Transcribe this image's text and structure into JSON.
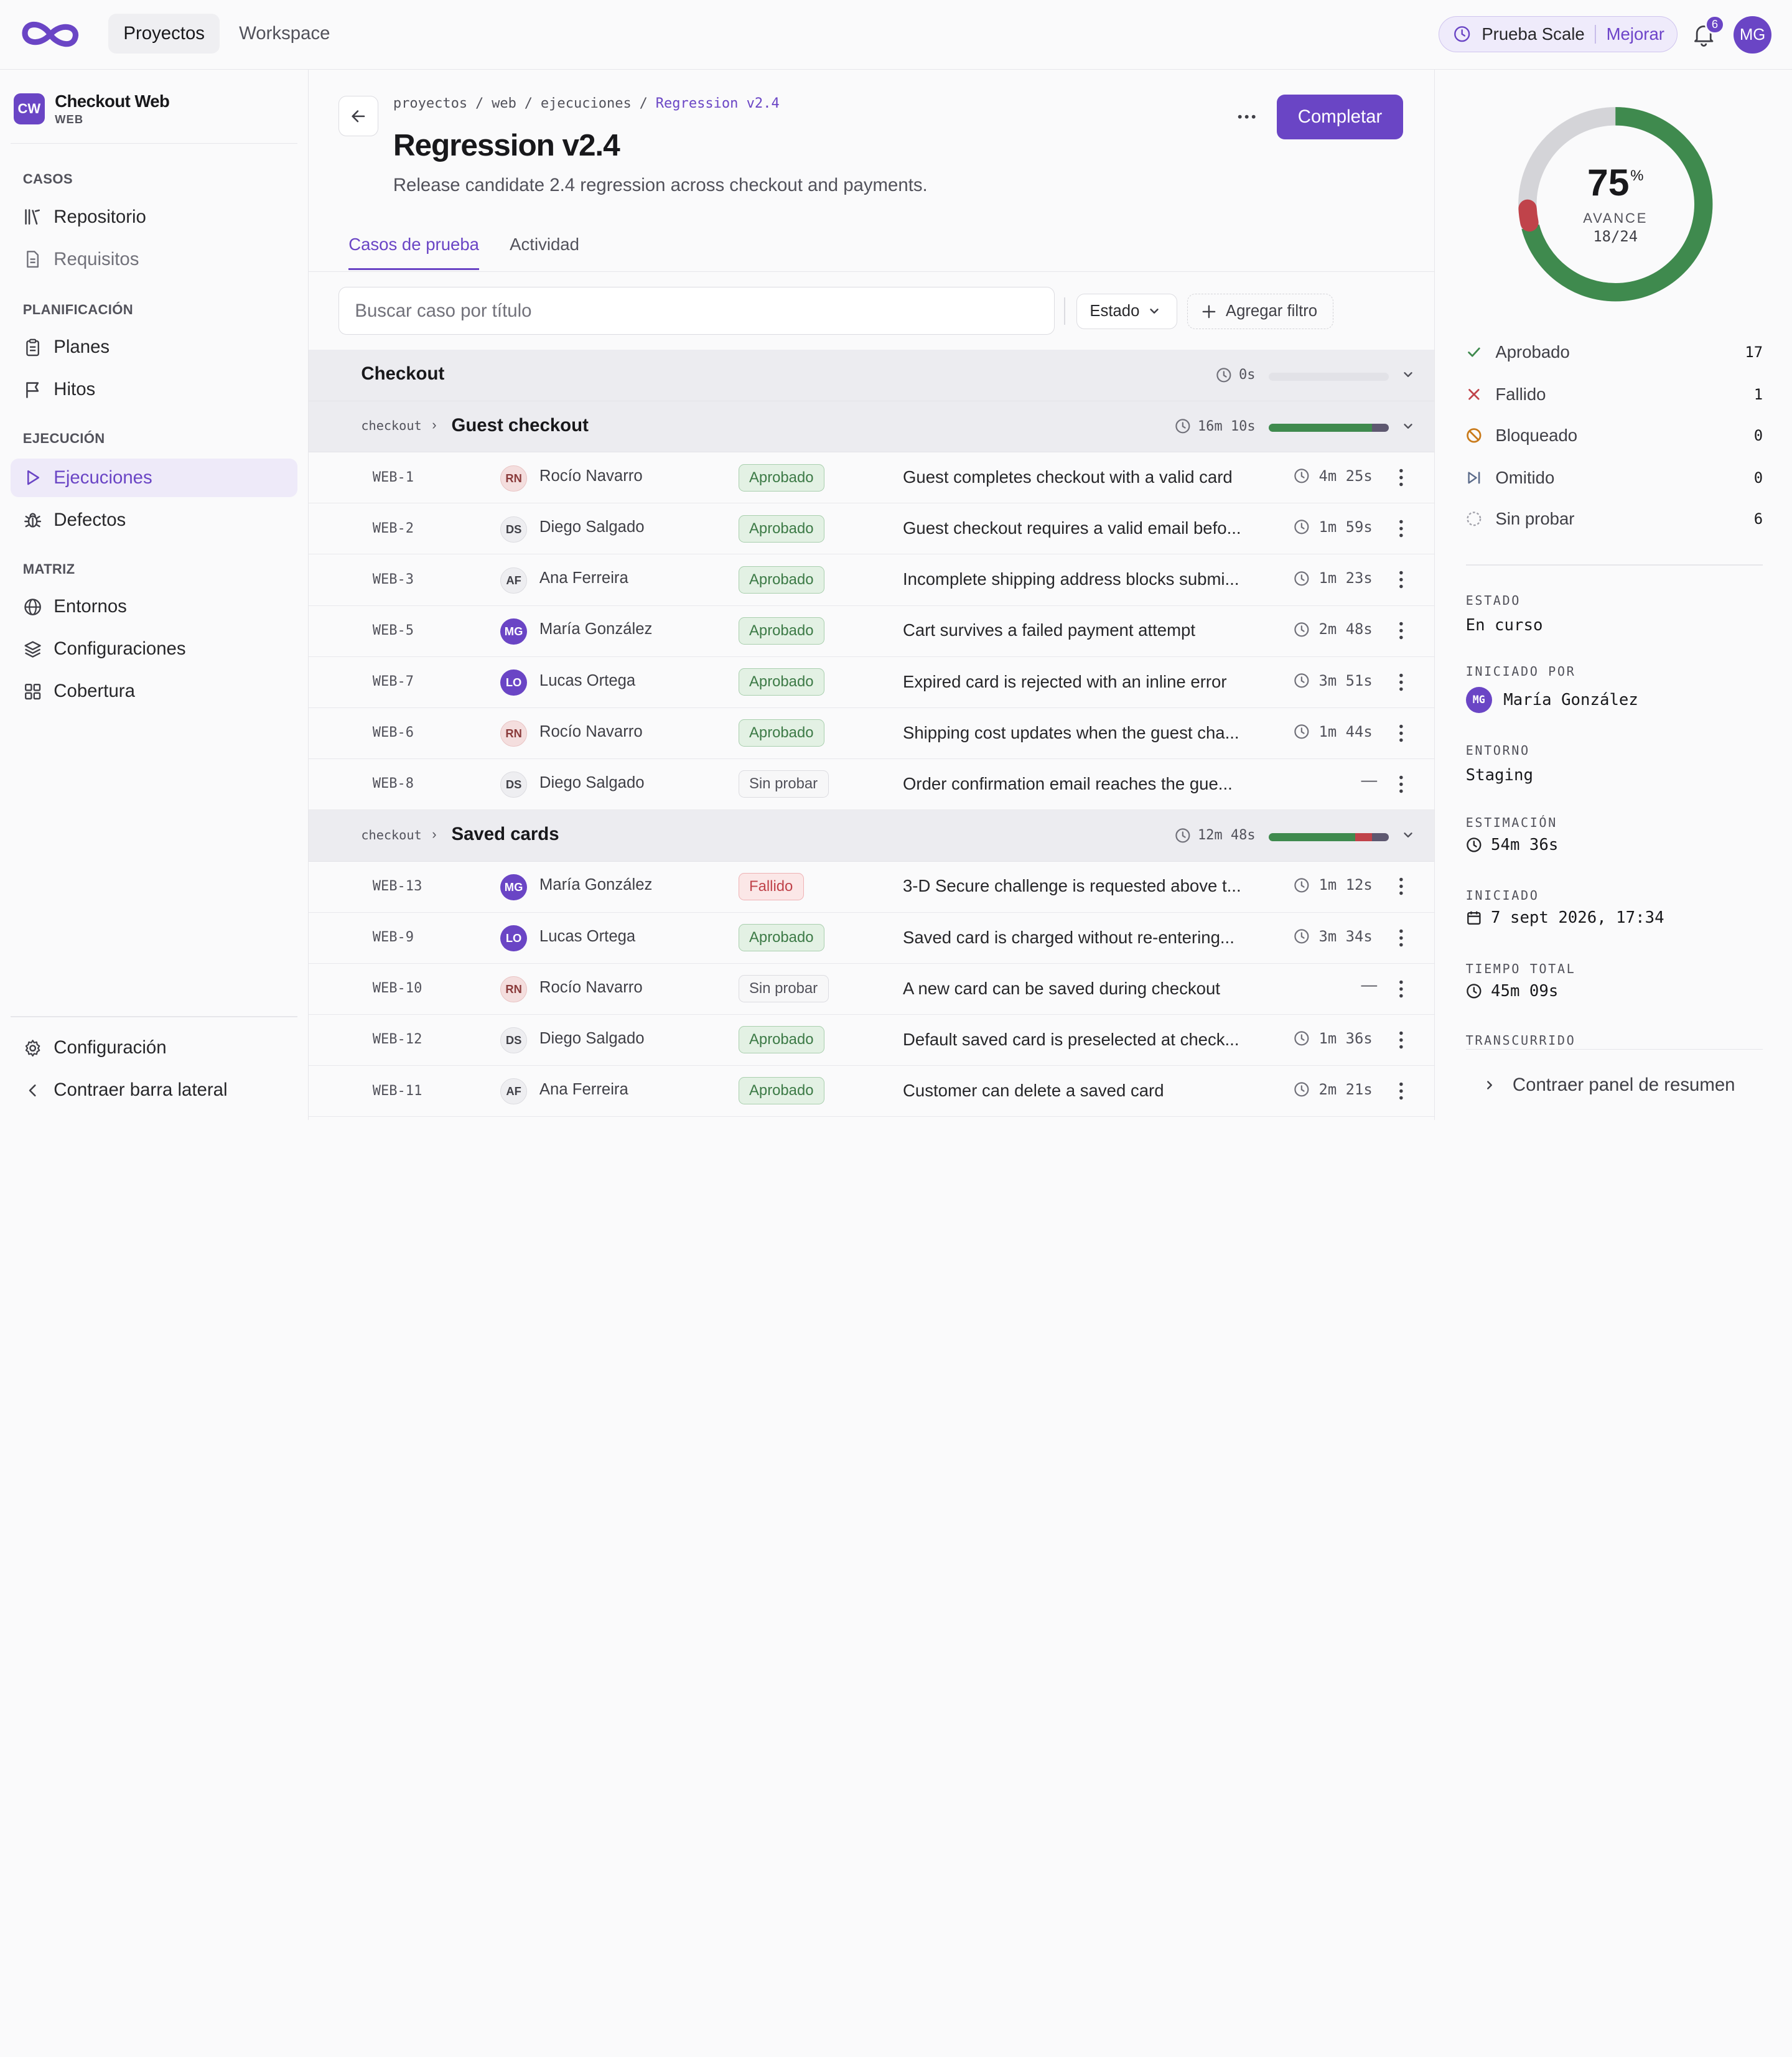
{
  "topbar": {
    "nav": [
      "Proyectos",
      "Workspace"
    ],
    "trial_plan": "Prueba Scale",
    "trial_upgrade": "Mejorar",
    "notification_count": "6",
    "user_initials": "MG"
  },
  "sidebar": {
    "project_badge": "CW",
    "project_name": "Checkout Web",
    "project_key": "WEB",
    "sections": {
      "casos": "CASOS",
      "planificacion": "PLANIFICACIÓN",
      "ejecucion": "EJECUCIÓN",
      "matriz": "MATRIZ"
    },
    "items": {
      "repositorio": "Repositorio",
      "requisitos": "Requisitos",
      "planes": "Planes",
      "hitos": "Hitos",
      "ejecuciones": "Ejecuciones",
      "defectos": "Defectos",
      "entornos": "Entornos",
      "configuraciones": "Configuraciones",
      "cobertura": "Cobertura"
    },
    "settings": "Configuración",
    "collapse": "Contraer barra lateral"
  },
  "main": {
    "breadcrumbs": [
      "proyectos",
      "/",
      "web",
      "/",
      "ejecuciones",
      "/",
      "Regression v2.4"
    ],
    "title": "Regression v2.4",
    "description": "Release candidate 2.4 regression across checkout and payments.",
    "complete_button": "Completar",
    "tabs": [
      "Casos de prueba",
      "Actividad"
    ],
    "search_placeholder": "Buscar caso por título",
    "estado_filter": "Estado",
    "add_filter": "Agregar filtro"
  },
  "groups": {
    "checkout": {
      "title": "Checkout",
      "time": "0s"
    },
    "guest": {
      "path": "checkout",
      "title": "Guest checkout",
      "time": "16m 10s"
    },
    "saved": {
      "path": "checkout",
      "title": "Saved cards",
      "time": "12m 48s"
    }
  },
  "cases_guest": [
    {
      "id": "WEB-1",
      "initials": "RN",
      "assignee": "Rocío Navarro",
      "status": "Aprobado",
      "title": "Guest completes checkout with a valid card",
      "time": "4m 25s"
    },
    {
      "id": "WEB-2",
      "initials": "DS",
      "assignee": "Diego Salgado",
      "status": "Aprobado",
      "title": "Guest checkout requires a valid email befo...",
      "time": "1m 59s"
    },
    {
      "id": "WEB-3",
      "initials": "AF",
      "assignee": "Ana Ferreira",
      "status": "Aprobado",
      "title": "Incomplete shipping address blocks submi...",
      "time": "1m 23s"
    },
    {
      "id": "WEB-5",
      "initials": "MG",
      "assignee": "María González",
      "status": "Aprobado",
      "title": "Cart survives a failed payment attempt",
      "time": "2m 48s"
    },
    {
      "id": "WEB-7",
      "initials": "LO",
      "assignee": "Lucas Ortega",
      "status": "Aprobado",
      "title": "Expired card is rejected with an inline error",
      "time": "3m 51s"
    },
    {
      "id": "WEB-6",
      "initials": "RN",
      "assignee": "Rocío Navarro",
      "status": "Aprobado",
      "title": "Shipping cost updates when the guest cha...",
      "time": "1m 44s"
    },
    {
      "id": "WEB-8",
      "initials": "DS",
      "assignee": "Diego Salgado",
      "status": "Sin probar",
      "title": "Order confirmation email reaches the gue...",
      "time": "—"
    }
  ],
  "cases_saved": [
    {
      "id": "WEB-13",
      "initials": "MG",
      "assignee": "María González",
      "status": "Fallido",
      "title": "3-D Secure challenge is requested above t...",
      "time": "1m 12s"
    },
    {
      "id": "WEB-9",
      "initials": "LO",
      "assignee": "Lucas Ortega",
      "status": "Aprobado",
      "title": "Saved card is charged without re-entering...",
      "time": "3m 34s"
    },
    {
      "id": "WEB-10",
      "initials": "RN",
      "assignee": "Rocío Navarro",
      "status": "Sin probar",
      "title": "A new card can be saved during checkout",
      "time": "—"
    },
    {
      "id": "WEB-12",
      "initials": "DS",
      "assignee": "Diego Salgado",
      "status": "Aprobado",
      "title": "Default saved card is preselected at check...",
      "time": "1m 36s"
    },
    {
      "id": "WEB-11",
      "initials": "AF",
      "assignee": "Ana Ferreira",
      "status": "Aprobado",
      "title": "Customer can delete a saved card",
      "time": "2m 21s"
    }
  ],
  "summary": {
    "percent": "75",
    "percent_sign": "%",
    "progress_label": "AVANCE",
    "progress_count": "18/24",
    "stats": [
      {
        "label": "Aprobado",
        "value": "17"
      },
      {
        "label": "Fallido",
        "value": "1"
      },
      {
        "label": "Bloqueado",
        "value": "0"
      },
      {
        "label": "Omitido",
        "value": "0"
      },
      {
        "label": "Sin probar",
        "value": "6"
      }
    ],
    "estado_label": "ESTADO",
    "estado_value": "En curso",
    "iniciado_por_label": "INICIADO POR",
    "iniciado_por_initials": "MG",
    "iniciado_por_value": "María González",
    "entorno_label": "ENTORNO",
    "entorno_value": "Staging",
    "estimacion_label": "ESTIMACIÓN",
    "estimacion_value": "54m 36s",
    "iniciado_label": "INICIADO",
    "iniciado_value": "7 sept 2026, 17:34",
    "tiempo_total_label": "TIEMPO TOTAL",
    "tiempo_total_value": "45m 09s",
    "transcurrido_label": "TRANSCURRIDO",
    "collapse_label": "Contraer panel de resumen"
  },
  "colors": {
    "accent": "#6a45c5",
    "pass": "#3f8a4e",
    "fail": "#c0434a",
    "untested": "#d4d4d8",
    "blocked": "#c97a1a"
  }
}
